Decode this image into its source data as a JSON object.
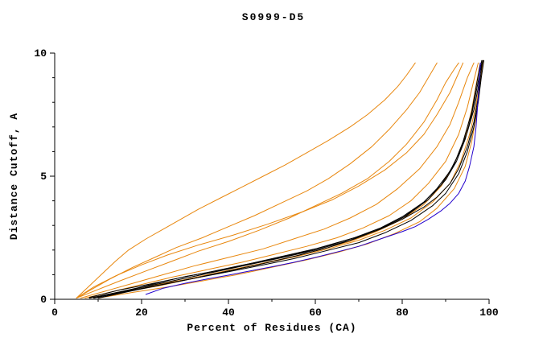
{
  "chart_data": {
    "type": "line",
    "title": "S0999-D5",
    "xlabel": "Percent of Residues (CA)",
    "ylabel": "Distance Cutoff, A",
    "xlim": [
      0,
      100
    ],
    "ylim": [
      0,
      10
    ],
    "x_major_ticks": [
      0,
      20,
      40,
      60,
      80,
      100
    ],
    "x_minor_ticks": [
      10,
      30,
      50,
      70,
      90
    ],
    "y_major_ticks": [
      0,
      5,
      10
    ],
    "y_minor_ticks": [
      1,
      2,
      3,
      4,
      6,
      7,
      8,
      9
    ],
    "grid": false,
    "legend": "none",
    "colors": {
      "orange": "#e8870e",
      "black": "#000000",
      "blue": "#2200cc"
    },
    "series": [
      {
        "name": "orange-1",
        "color": "#e8870e",
        "points": [
          [
            5,
            0.05
          ],
          [
            8,
            0.55
          ],
          [
            11,
            1.05
          ],
          [
            14,
            1.55
          ],
          [
            17,
            2.0
          ],
          [
            21,
            2.45
          ],
          [
            25,
            2.85
          ],
          [
            29,
            3.25
          ],
          [
            33,
            3.65
          ],
          [
            38,
            4.1
          ],
          [
            43,
            4.55
          ],
          [
            48,
            5.0
          ],
          [
            53,
            5.45
          ],
          [
            58,
            5.95
          ],
          [
            63,
            6.45
          ],
          [
            68,
            7.0
          ],
          [
            72,
            7.5
          ],
          [
            76,
            8.1
          ],
          [
            79,
            8.65
          ],
          [
            81,
            9.1
          ],
          [
            83,
            9.6
          ]
        ]
      },
      {
        "name": "orange-2",
        "color": "#e8870e",
        "points": [
          [
            5,
            0.05
          ],
          [
            9,
            0.45
          ],
          [
            13,
            0.85
          ],
          [
            18,
            1.3
          ],
          [
            23,
            1.7
          ],
          [
            28,
            2.1
          ],
          [
            34,
            2.5
          ],
          [
            40,
            2.95
          ],
          [
            46,
            3.4
          ],
          [
            52,
            3.9
          ],
          [
            58,
            4.4
          ],
          [
            63,
            4.9
          ],
          [
            68,
            5.5
          ],
          [
            73,
            6.2
          ],
          [
            77,
            6.9
          ],
          [
            81,
            7.7
          ],
          [
            84,
            8.4
          ],
          [
            86,
            9.0
          ],
          [
            88,
            9.6
          ]
        ]
      },
      {
        "name": "orange-3",
        "color": "#e8870e",
        "points": [
          [
            5,
            0.05
          ],
          [
            10,
            0.4
          ],
          [
            15,
            0.75
          ],
          [
            21,
            1.15
          ],
          [
            27,
            1.55
          ],
          [
            33,
            1.95
          ],
          [
            40,
            2.35
          ],
          [
            47,
            2.8
          ],
          [
            54,
            3.3
          ],
          [
            60,
            3.8
          ],
          [
            66,
            4.3
          ],
          [
            72,
            4.9
          ],
          [
            77,
            5.6
          ],
          [
            81,
            6.3
          ],
          [
            85,
            7.2
          ],
          [
            88,
            8.1
          ],
          [
            90,
            8.8
          ],
          [
            92,
            9.35
          ],
          [
            93,
            9.6
          ]
        ]
      },
      {
        "name": "orange-4",
        "color": "#e8870e",
        "points": [
          [
            6,
            0.05
          ],
          [
            12,
            0.35
          ],
          [
            18,
            0.65
          ],
          [
            25,
            1.0
          ],
          [
            32,
            1.35
          ],
          [
            40,
            1.7
          ],
          [
            48,
            2.05
          ],
          [
            55,
            2.45
          ],
          [
            62,
            2.85
          ],
          [
            68,
            3.3
          ],
          [
            74,
            3.85
          ],
          [
            79,
            4.5
          ],
          [
            84,
            5.3
          ],
          [
            88,
            6.2
          ],
          [
            91,
            7.1
          ],
          [
            93,
            8.0
          ],
          [
            95,
            9.0
          ],
          [
            96.5,
            9.6
          ]
        ]
      },
      {
        "name": "orange-5",
        "color": "#e8870e",
        "points": [
          [
            7,
            0.05
          ],
          [
            13,
            0.3
          ],
          [
            20,
            0.6
          ],
          [
            27,
            0.9
          ],
          [
            35,
            1.2
          ],
          [
            43,
            1.5
          ],
          [
            50,
            1.8
          ],
          [
            58,
            2.15
          ],
          [
            65,
            2.5
          ],
          [
            71,
            2.9
          ],
          [
            77,
            3.4
          ],
          [
            82,
            4.0
          ],
          [
            86,
            4.7
          ],
          [
            90,
            5.6
          ],
          [
            93,
            6.7
          ],
          [
            95,
            7.8
          ],
          [
            96.5,
            8.9
          ],
          [
            97.5,
            9.6
          ]
        ]
      },
      {
        "name": "orange-6",
        "color": "#e8870e",
        "points": [
          [
            8,
            0.05
          ],
          [
            15,
            0.3
          ],
          [
            22,
            0.55
          ],
          [
            30,
            0.8
          ],
          [
            38,
            1.1
          ],
          [
            46,
            1.4
          ],
          [
            54,
            1.7
          ],
          [
            61,
            2.0
          ],
          [
            68,
            2.35
          ],
          [
            74,
            2.75
          ],
          [
            80,
            3.25
          ],
          [
            85,
            3.85
          ],
          [
            89,
            4.6
          ],
          [
            92,
            5.5
          ],
          [
            94.5,
            6.6
          ],
          [
            96,
            7.7
          ],
          [
            97,
            8.7
          ],
          [
            98,
            9.6
          ]
        ]
      },
      {
        "name": "orange-7",
        "color": "#e8870e",
        "points": [
          [
            8,
            0.05
          ],
          [
            16,
            0.3
          ],
          [
            24,
            0.55
          ],
          [
            32,
            0.85
          ],
          [
            40,
            1.15
          ],
          [
            48,
            1.45
          ],
          [
            56,
            1.75
          ],
          [
            63,
            2.05
          ],
          [
            70,
            2.4
          ],
          [
            76,
            2.8
          ],
          [
            82,
            3.3
          ],
          [
            87,
            3.95
          ],
          [
            91,
            4.7
          ],
          [
            93.5,
            5.6
          ],
          [
            95.5,
            6.7
          ],
          [
            97,
            7.9
          ],
          [
            98,
            8.9
          ],
          [
            98.5,
            9.7
          ]
        ]
      },
      {
        "name": "orange-8",
        "color": "#e8870e",
        "points": [
          [
            10,
            0.05
          ],
          [
            18,
            0.28
          ],
          [
            26,
            0.5
          ],
          [
            34,
            0.75
          ],
          [
            42,
            1.0
          ],
          [
            50,
            1.3
          ],
          [
            58,
            1.6
          ],
          [
            65,
            1.9
          ],
          [
            72,
            2.25
          ],
          [
            78,
            2.65
          ],
          [
            84,
            3.15
          ],
          [
            88,
            3.7
          ],
          [
            92,
            4.5
          ],
          [
            94.5,
            5.4
          ],
          [
            96,
            6.4
          ],
          [
            97.2,
            7.6
          ],
          [
            98,
            8.8
          ],
          [
            98.6,
            9.7
          ]
        ]
      },
      {
        "name": "orange-9",
        "color": "#e8870e",
        "points": [
          [
            5,
            0.05
          ],
          [
            9,
            0.5
          ],
          [
            14,
            0.95
          ],
          [
            20,
            1.4
          ],
          [
            26,
            1.8
          ],
          [
            33,
            2.2
          ],
          [
            41,
            2.6
          ],
          [
            49,
            3.05
          ],
          [
            57,
            3.55
          ],
          [
            64,
            4.05
          ],
          [
            70,
            4.6
          ],
          [
            76,
            5.25
          ],
          [
            81,
            5.95
          ],
          [
            85,
            6.7
          ],
          [
            88,
            7.5
          ],
          [
            91,
            8.4
          ],
          [
            93,
            9.2
          ],
          [
            94,
            9.6
          ]
        ]
      },
      {
        "name": "black-1",
        "color": "#000000",
        "points": [
          [
            8,
            0.05
          ],
          [
            15,
            0.3
          ],
          [
            20,
            0.5
          ],
          [
            25,
            0.72
          ],
          [
            30,
            0.92
          ],
          [
            35,
            1.08
          ],
          [
            40,
            1.25
          ],
          [
            45,
            1.45
          ],
          [
            50,
            1.65
          ],
          [
            55,
            1.85
          ],
          [
            60,
            2.05
          ],
          [
            65,
            2.3
          ],
          [
            70,
            2.55
          ],
          [
            75,
            2.85
          ],
          [
            80,
            3.25
          ],
          [
            85,
            3.75
          ],
          [
            88,
            4.15
          ],
          [
            91,
            4.7
          ],
          [
            93,
            5.3
          ],
          [
            95,
            6.2
          ],
          [
            96.5,
            7.2
          ],
          [
            97.5,
            8.2
          ],
          [
            98,
            9.0
          ],
          [
            98.5,
            9.7
          ]
        ]
      },
      {
        "name": "black-2",
        "color": "#000000",
        "points": [
          [
            8,
            0.08
          ],
          [
            15,
            0.38
          ],
          [
            22,
            0.62
          ],
          [
            29,
            0.88
          ],
          [
            36,
            1.12
          ],
          [
            43,
            1.38
          ],
          [
            50,
            1.62
          ],
          [
            57,
            1.9
          ],
          [
            63,
            2.18
          ],
          [
            69,
            2.5
          ],
          [
            75,
            2.9
          ],
          [
            80,
            3.35
          ],
          [
            85,
            3.95
          ],
          [
            88,
            4.5
          ],
          [
            91,
            5.2
          ],
          [
            93,
            5.9
          ],
          [
            95,
            6.8
          ],
          [
            96.5,
            7.7
          ],
          [
            97.5,
            8.6
          ],
          [
            98.3,
            9.7
          ]
        ]
      },
      {
        "name": "black-3",
        "color": "#000000",
        "points": [
          [
            10,
            0.05
          ],
          [
            18,
            0.35
          ],
          [
            25,
            0.6
          ],
          [
            32,
            0.85
          ],
          [
            40,
            1.12
          ],
          [
            48,
            1.4
          ],
          [
            55,
            1.65
          ],
          [
            62,
            1.95
          ],
          [
            70,
            2.3
          ],
          [
            76,
            2.7
          ],
          [
            82,
            3.2
          ],
          [
            87,
            3.8
          ],
          [
            90,
            4.3
          ],
          [
            93,
            5.1
          ],
          [
            95,
            6.0
          ],
          [
            96.5,
            7.0
          ],
          [
            97.5,
            8.0
          ],
          [
            98.2,
            9.0
          ],
          [
            98.8,
            9.7
          ]
        ]
      },
      {
        "name": "black-4",
        "color": "#000000",
        "points": [
          [
            9,
            0.05
          ],
          [
            16,
            0.3
          ],
          [
            24,
            0.58
          ],
          [
            32,
            0.85
          ],
          [
            40,
            1.15
          ],
          [
            48,
            1.45
          ],
          [
            56,
            1.78
          ],
          [
            63,
            2.1
          ],
          [
            69,
            2.45
          ],
          [
            75,
            2.85
          ],
          [
            81,
            3.4
          ],
          [
            86,
            4.05
          ],
          [
            90,
            4.85
          ],
          [
            92.5,
            5.6
          ],
          [
            94.5,
            6.5
          ],
          [
            96,
            7.5
          ],
          [
            97,
            8.4
          ],
          [
            98,
            9.3
          ],
          [
            98.6,
            9.7
          ]
        ]
      },
      {
        "name": "black-5",
        "color": "#000000",
        "points": [
          [
            9,
            0.05
          ],
          [
            14,
            0.25
          ],
          [
            20,
            0.48
          ],
          [
            28,
            0.78
          ],
          [
            36,
            1.08
          ],
          [
            44,
            1.38
          ],
          [
            52,
            1.68
          ],
          [
            60,
            2.0
          ],
          [
            68,
            2.4
          ],
          [
            74,
            2.8
          ],
          [
            80,
            3.3
          ],
          [
            85,
            3.95
          ],
          [
            89,
            4.65
          ],
          [
            92,
            5.5
          ],
          [
            94,
            6.4
          ],
          [
            96,
            7.6
          ],
          [
            97,
            8.6
          ],
          [
            98,
            9.6
          ]
        ]
      },
      {
        "name": "blue-1",
        "color": "#2200cc",
        "points": [
          [
            21,
            0.2
          ],
          [
            25,
            0.45
          ],
          [
            30,
            0.65
          ],
          [
            35,
            0.82
          ],
          [
            40,
            0.98
          ],
          [
            45,
            1.15
          ],
          [
            50,
            1.32
          ],
          [
            55,
            1.5
          ],
          [
            60,
            1.7
          ],
          [
            65,
            1.92
          ],
          [
            70,
            2.15
          ],
          [
            75,
            2.45
          ],
          [
            80,
            2.75
          ],
          [
            83,
            2.95
          ],
          [
            86,
            3.25
          ],
          [
            89,
            3.6
          ],
          [
            91,
            3.9
          ],
          [
            93,
            4.3
          ],
          [
            94.5,
            4.8
          ],
          [
            95.5,
            5.4
          ],
          [
            96.5,
            6.2
          ],
          [
            97,
            7.0
          ],
          [
            97.5,
            8.2
          ],
          [
            98,
            9.6
          ]
        ]
      }
    ]
  }
}
